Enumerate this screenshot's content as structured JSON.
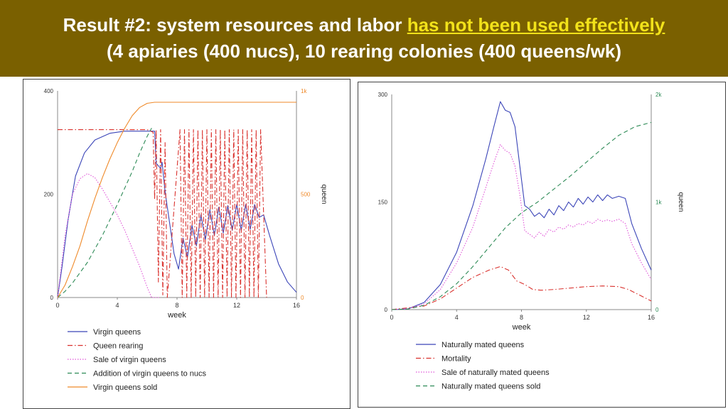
{
  "header": {
    "prefix": "Result #2: system resources and labor ",
    "highlight": "has not been used effectively",
    "line2": "(4 apiaries (400 nucs), 10 rearing colonies (400 queens/wk)"
  },
  "colors": {
    "banner": "#7a6000",
    "highlight": "#f2e21a",
    "blue": "#3b45b8",
    "red": "#d9302c",
    "magenta": "#e055d8",
    "green": "#2e8b57",
    "orange": "#ef8a2a"
  },
  "chart_data": [
    {
      "type": "line",
      "xlabel": "week",
      "y2label": "queen",
      "xlim": [
        0,
        16
      ],
      "ylim": [
        0,
        400
      ],
      "y2lim": [
        0,
        1000
      ],
      "xticks": [
        "0",
        "4",
        "8",
        "12",
        "16"
      ],
      "yticks": [
        "0",
        "200",
        "400"
      ],
      "y2ticks": [
        "0",
        "500",
        "1k"
      ],
      "legend_position": "bottom",
      "series": [
        {
          "name": "Virgin queens",
          "color": "#3b45b8",
          "style": "solid",
          "axis": "left",
          "points": [
            [
              0,
              0
            ],
            [
              0.3,
              60
            ],
            [
              0.7,
              150
            ],
            [
              1.2,
              235
            ],
            [
              1.8,
              280
            ],
            [
              2.5,
              305
            ],
            [
              3.5,
              318
            ],
            [
              4.5,
              322
            ],
            [
              6.5,
              322
            ],
            [
              6.6,
              260
            ],
            [
              6.9,
              250
            ],
            [
              7.0,
              262
            ],
            [
              7.2,
              205
            ],
            [
              7.5,
              145
            ],
            [
              7.8,
              85
            ],
            [
              8.1,
              55
            ],
            [
              8.4,
              115
            ],
            [
              8.7,
              78
            ],
            [
              9.0,
              140
            ],
            [
              9.3,
              100
            ],
            [
              9.6,
              160
            ],
            [
              9.9,
              112
            ],
            [
              10.2,
              170
            ],
            [
              10.5,
              120
            ],
            [
              10.8,
              175
            ],
            [
              11.1,
              125
            ],
            [
              11.4,
              178
            ],
            [
              11.7,
              130
            ],
            [
              12.0,
              180
            ],
            [
              12.3,
              130
            ],
            [
              12.6,
              180
            ],
            [
              12.9,
              132
            ],
            [
              13.2,
              180
            ],
            [
              13.5,
              155
            ],
            [
              13.8,
              160
            ],
            [
              14.2,
              120
            ],
            [
              14.8,
              65
            ],
            [
              15.4,
              30
            ],
            [
              16,
              10
            ]
          ]
        },
        {
          "name": "Queen rearing",
          "color": "#d9302c",
          "style": "dashdot",
          "axis": "left",
          "points": [
            [
              0,
              325
            ],
            [
              6.0,
              325
            ],
            [
              6.4,
              320
            ],
            [
              6.5,
              190
            ],
            [
              6.6,
              325
            ],
            [
              6.75,
              30
            ],
            [
              6.9,
              325
            ],
            [
              7.05,
              5
            ],
            [
              7.2,
              300
            ],
            [
              7.35,
              0
            ],
            [
              8.2,
              325
            ],
            [
              8.35,
              0
            ],
            [
              8.5,
              325
            ],
            [
              8.65,
              0
            ],
            [
              8.8,
              325
            ],
            [
              8.95,
              0
            ],
            [
              9.1,
              325
            ],
            [
              9.25,
              0
            ],
            [
              9.4,
              325
            ],
            [
              9.55,
              0
            ],
            [
              9.7,
              325
            ],
            [
              9.85,
              0
            ],
            [
              10.0,
              325
            ],
            [
              10.15,
              0
            ],
            [
              10.3,
              325
            ],
            [
              10.45,
              0
            ],
            [
              10.6,
              325
            ],
            [
              10.75,
              0
            ],
            [
              10.9,
              325
            ],
            [
              11.05,
              0
            ],
            [
              11.2,
              325
            ],
            [
              11.35,
              0
            ],
            [
              11.5,
              325
            ],
            [
              11.65,
              0
            ],
            [
              11.8,
              325
            ],
            [
              11.95,
              0
            ],
            [
              12.1,
              325
            ],
            [
              12.25,
              0
            ],
            [
              12.4,
              325
            ],
            [
              12.55,
              0
            ],
            [
              12.7,
              325
            ],
            [
              12.85,
              0
            ],
            [
              13.0,
              325
            ],
            [
              13.15,
              0
            ],
            [
              13.3,
              325
            ],
            [
              13.45,
              0
            ],
            [
              13.6,
              325
            ],
            [
              14.0,
              0
            ]
          ]
        },
        {
          "name": "Sale of virgin queens",
          "color": "#e055d8",
          "style": "dotted",
          "axis": "left",
          "points": [
            [
              0,
              0
            ],
            [
              0.5,
              120
            ],
            [
              1.0,
              200
            ],
            [
              1.5,
              230
            ],
            [
              2.0,
              240
            ],
            [
              2.5,
              232
            ],
            [
              3.0,
              210
            ],
            [
              3.5,
              185
            ],
            [
              4.0,
              160
            ],
            [
              4.5,
              130
            ],
            [
              5.0,
              95
            ],
            [
              5.5,
              60
            ],
            [
              6.0,
              20
            ],
            [
              6.3,
              0
            ],
            [
              6.8,
              0
            ]
          ]
        },
        {
          "name": "Addition of virgin queens to nucs",
          "color": "#2e8b57",
          "style": "dashed",
          "axis": "right",
          "points": [
            [
              0,
              0
            ],
            [
              0.5,
              30
            ],
            [
              1.0,
              70
            ],
            [
              2.0,
              170
            ],
            [
              3.0,
              300
            ],
            [
              4.0,
              450
            ],
            [
              4.5,
              530
            ],
            [
              5.0,
              610
            ],
            [
              5.5,
              700
            ],
            [
              6.0,
              780
            ],
            [
              6.3,
              820
            ]
          ]
        },
        {
          "name": "Virgin queens sold",
          "color": "#ef8a2a",
          "style": "solid",
          "axis": "right",
          "points": [
            [
              0,
              0
            ],
            [
              0.5,
              60
            ],
            [
              1.0,
              150
            ],
            [
              1.5,
              250
            ],
            [
              2.0,
              370
            ],
            [
              2.5,
              480
            ],
            [
              3.0,
              580
            ],
            [
              3.5,
              670
            ],
            [
              4.0,
              750
            ],
            [
              4.5,
              820
            ],
            [
              5.0,
              880
            ],
            [
              5.5,
              920
            ],
            [
              6.0,
              940
            ],
            [
              6.5,
              945
            ],
            [
              16,
              945
            ]
          ]
        }
      ]
    },
    {
      "type": "line",
      "xlabel": "week",
      "y2label": "queen",
      "xlim": [
        0,
        16
      ],
      "ylim": [
        0,
        300
      ],
      "y2lim": [
        0,
        2000
      ],
      "xticks": [
        "0",
        "4",
        "8",
        "12",
        "16"
      ],
      "yticks": [
        "0",
        "150",
        "300"
      ],
      "y2ticks": [
        "0",
        "1k",
        "2k"
      ],
      "legend_position": "bottom",
      "series": [
        {
          "name": "Naturally mated queens",
          "color": "#3b45b8",
          "style": "solid",
          "axis": "left",
          "points": [
            [
              0,
              0
            ],
            [
              1,
              1
            ],
            [
              2,
              10
            ],
            [
              3,
              35
            ],
            [
              4,
              80
            ],
            [
              5,
              145
            ],
            [
              5.8,
              210
            ],
            [
              6.3,
              255
            ],
            [
              6.7,
              290
            ],
            [
              7.0,
              278
            ],
            [
              7.3,
              275
            ],
            [
              7.6,
              255
            ],
            [
              7.9,
              200
            ],
            [
              8.2,
              145
            ],
            [
              8.5,
              140
            ],
            [
              8.8,
              130
            ],
            [
              9.1,
              135
            ],
            [
              9.4,
              128
            ],
            [
              9.7,
              140
            ],
            [
              10.0,
              132
            ],
            [
              10.3,
              145
            ],
            [
              10.6,
              138
            ],
            [
              10.9,
              150
            ],
            [
              11.2,
              143
            ],
            [
              11.5,
              155
            ],
            [
              11.8,
              147
            ],
            [
              12.1,
              157
            ],
            [
              12.4,
              150
            ],
            [
              12.7,
              160
            ],
            [
              13.0,
              152
            ],
            [
              13.3,
              160
            ],
            [
              13.6,
              155
            ],
            [
              14.0,
              158
            ],
            [
              14.4,
              155
            ],
            [
              14.8,
              120
            ],
            [
              15.4,
              85
            ],
            [
              16,
              55
            ]
          ]
        },
        {
          "name": "Mortality",
          "color": "#d9302c",
          "style": "dashdot",
          "axis": "left",
          "points": [
            [
              0,
              0
            ],
            [
              2,
              5
            ],
            [
              3,
              15
            ],
            [
              4,
              30
            ],
            [
              5,
              45
            ],
            [
              6,
              55
            ],
            [
              6.7,
              60
            ],
            [
              7.2,
              55
            ],
            [
              7.7,
              40
            ],
            [
              8.2,
              35
            ],
            [
              8.7,
              28
            ],
            [
              9.2,
              27
            ],
            [
              10,
              28
            ],
            [
              11,
              30
            ],
            [
              12,
              32
            ],
            [
              13,
              33
            ],
            [
              14,
              32
            ],
            [
              14.6,
              28
            ],
            [
              15.3,
              20
            ],
            [
              16,
              12
            ]
          ]
        },
        {
          "name": "Sale of naturally mated queens",
          "color": "#e055d8",
          "style": "dotted",
          "axis": "left",
          "points": [
            [
              0,
              0
            ],
            [
              1,
              1
            ],
            [
              2,
              8
            ],
            [
              3,
              28
            ],
            [
              4,
              65
            ],
            [
              5,
              115
            ],
            [
              5.8,
              170
            ],
            [
              6.3,
              205
            ],
            [
              6.7,
              230
            ],
            [
              7.0,
              222
            ],
            [
              7.3,
              218
            ],
            [
              7.6,
              200
            ],
            [
              7.9,
              160
            ],
            [
              8.2,
              110
            ],
            [
              8.5,
              105
            ],
            [
              8.8,
              100
            ],
            [
              9.1,
              108
            ],
            [
              9.4,
              102
            ],
            [
              9.7,
              112
            ],
            [
              10.0,
              108
            ],
            [
              10.3,
              115
            ],
            [
              10.6,
              112
            ],
            [
              10.9,
              118
            ],
            [
              11.2,
              115
            ],
            [
              11.5,
              120
            ],
            [
              11.8,
              118
            ],
            [
              12.1,
              123
            ],
            [
              12.4,
              120
            ],
            [
              12.7,
              126
            ],
            [
              13.0,
              123
            ],
            [
              13.3,
              125
            ],
            [
              13.6,
              123
            ],
            [
              14.0,
              126
            ],
            [
              14.4,
              120
            ],
            [
              14.8,
              92
            ],
            [
              15.4,
              65
            ],
            [
              16,
              42
            ]
          ]
        },
        {
          "name": "Naturally mated queens sold",
          "color": "#2e8b57",
          "style": "dashed",
          "axis": "right",
          "points": [
            [
              0,
              0
            ],
            [
              1,
              5
            ],
            [
              2,
              40
            ],
            [
              3,
              120
            ],
            [
              4,
              240
            ],
            [
              5,
              400
            ],
            [
              6,
              580
            ],
            [
              7,
              760
            ],
            [
              8,
              900
            ],
            [
              9,
              1000
            ],
            [
              10,
              1120
            ],
            [
              11,
              1240
            ],
            [
              12,
              1370
            ],
            [
              13,
              1500
            ],
            [
              14,
              1620
            ],
            [
              15,
              1700
            ],
            [
              16,
              1740
            ]
          ]
        }
      ]
    }
  ]
}
